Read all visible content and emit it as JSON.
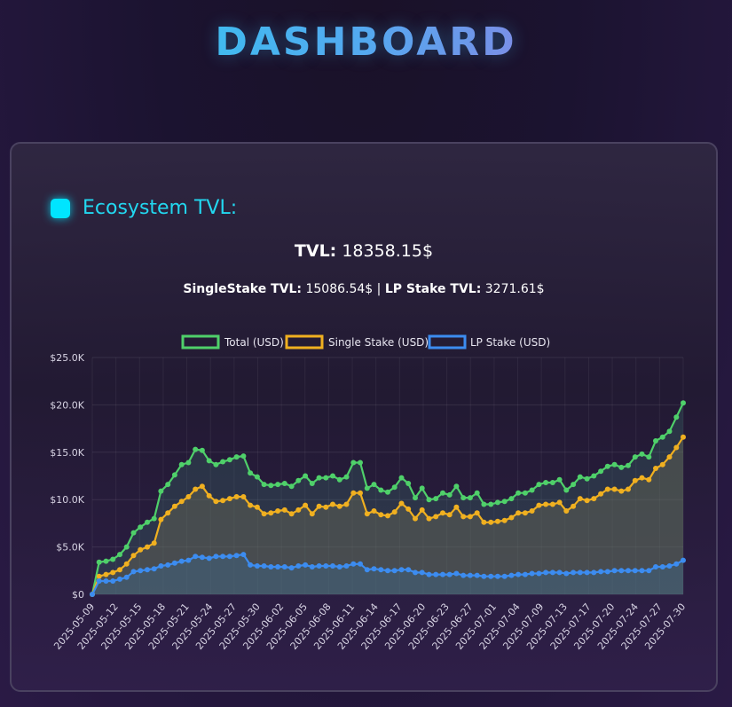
{
  "page": {
    "title": "DASHBOARD"
  },
  "section": {
    "title": "Ecosystem TVL:"
  },
  "tvl": {
    "label": "TVL:",
    "value": "18358.15$"
  },
  "subtotals": {
    "single_label": "SingleStake TVL:",
    "single_value": "15086.54$",
    "separator": "|",
    "lp_label": "LP Stake TVL:",
    "lp_value": "3271.61$"
  },
  "colors": {
    "total": "#4fd06a",
    "single": "#f0b020",
    "lp": "#3c8cf0",
    "accent": "#22d8f0"
  },
  "chart_data": {
    "type": "line",
    "title": "",
    "xlabel": "",
    "ylabel": "",
    "ylim": [
      0,
      25000
    ],
    "y_ticks": [
      "$0",
      "$5.0K",
      "$10.0K",
      "$15.0K",
      "$20.0K",
      "$25.0K"
    ],
    "x_tick_labels": [
      "2025-05-09",
      "2025-05-12",
      "2025-05-15",
      "2025-05-18",
      "2025-05-21",
      "2025-05-24",
      "2025-05-27",
      "2025-05-30",
      "2025-06-02",
      "2025-06-05",
      "2025-06-08",
      "2025-06-11",
      "2025-06-14",
      "2025-06-17",
      "2025-06-20",
      "2025-06-23",
      "2025-06-27",
      "2025-07-01",
      "2025-07-04",
      "2025-07-09",
      "2025-07-13",
      "2025-07-17",
      "2025-07-20",
      "2025-07-24",
      "2025-07-27",
      "2025-07-30"
    ],
    "grid": true,
    "legend_position": "top",
    "series": [
      {
        "name": "Total (USD)",
        "values": [
          0,
          3400,
          3500,
          3700,
          4200,
          5000,
          6500,
          7100,
          7600,
          8000,
          10900,
          11600,
          12600,
          13700,
          13900,
          15300,
          15200,
          14100,
          13700,
          14000,
          14200,
          14500,
          14600,
          12800,
          12400,
          11600,
          11500,
          11600,
          11700,
          11400,
          12000,
          12500,
          11700,
          12300,
          12300,
          12500,
          12100,
          12400,
          13900,
          13900,
          11200,
          11600,
          11000,
          10800,
          11300,
          12300,
          11700,
          10200,
          11200,
          10000,
          10100,
          10700,
          10500,
          11400,
          10200,
          10200,
          10700,
          9500,
          9500,
          9700,
          9800,
          10100,
          10700,
          10700,
          11000,
          11600,
          11800,
          11800,
          12100,
          11000,
          11600,
          12400,
          12200,
          12500,
          13000,
          13500,
          13700,
          13400,
          13600,
          14500,
          14800,
          14500,
          16200,
          16600,
          17200,
          18700,
          20200
        ]
      },
      {
        "name": "Single Stake (USD)",
        "values": [
          0,
          1900,
          2100,
          2300,
          2600,
          3200,
          4100,
          4700,
          5000,
          5400,
          7900,
          8600,
          9300,
          9800,
          10300,
          11100,
          11400,
          10400,
          9800,
          9900,
          10100,
          10300,
          10300,
          9400,
          9200,
          8500,
          8600,
          8800,
          8900,
          8500,
          8900,
          9400,
          8500,
          9300,
          9200,
          9500,
          9300,
          9500,
          10700,
          10700,
          8500,
          8800,
          8400,
          8300,
          8700,
          9600,
          9000,
          8000,
          8900,
          8000,
          8200,
          8600,
          8400,
          9200,
          8200,
          8200,
          8600,
          7600,
          7600,
          7700,
          7800,
          8100,
          8600,
          8600,
          8800,
          9400,
          9500,
          9500,
          9700,
          8800,
          9300,
          10100,
          9900,
          10100,
          10600,
          11100,
          11100,
          10900,
          11100,
          12000,
          12300,
          12100,
          13300,
          13700,
          14500,
          15500,
          16600
        ]
      },
      {
        "name": "LP Stake (USD)",
        "values": [
          0,
          1400,
          1400,
          1400,
          1600,
          1800,
          2400,
          2500,
          2600,
          2700,
          3000,
          3100,
          3300,
          3500,
          3600,
          4000,
          3900,
          3800,
          4000,
          4000,
          4000,
          4100,
          4200,
          3100,
          3000,
          3000,
          2900,
          2900,
          2900,
          2800,
          3000,
          3100,
          2900,
          3000,
          3000,
          3000,
          2900,
          3000,
          3200,
          3200,
          2600,
          2700,
          2600,
          2500,
          2500,
          2600,
          2600,
          2300,
          2300,
          2100,
          2100,
          2100,
          2100,
          2200,
          2000,
          2000,
          2000,
          1900,
          1900,
          1900,
          1900,
          2000,
          2100,
          2100,
          2200,
          2200,
          2300,
          2300,
          2300,
          2200,
          2300,
          2300,
          2300,
          2300,
          2400,
          2400,
          2500,
          2500,
          2500,
          2500,
          2500,
          2500,
          2900,
          2900,
          3000,
          3200,
          3600
        ]
      }
    ]
  }
}
